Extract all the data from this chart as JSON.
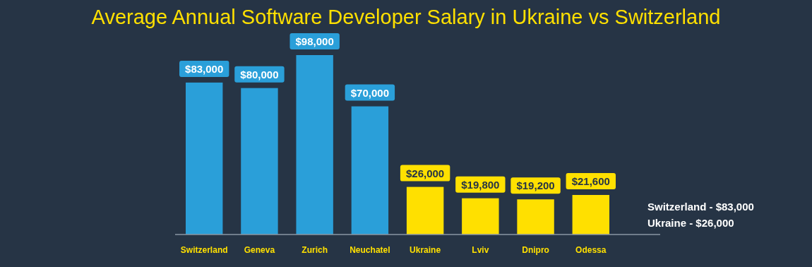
{
  "chart_data": {
    "type": "bar",
    "title": "Average Annual Software Developer Salary in Ukraine vs Switzerland",
    "categories": [
      "Switzerland",
      "Geneva",
      "Zurich",
      "Neuchatel",
      "Ukraine",
      "Lviv",
      "Dnipro",
      "Odessa"
    ],
    "values": [
      83000,
      80000,
      98000,
      70000,
      26000,
      19800,
      19200,
      21600
    ],
    "colors": [
      "#2a9fd9",
      "#2a9fd9",
      "#2a9fd9",
      "#2a9fd9",
      "#ffe000",
      "#ffe000",
      "#ffe000",
      "#ffe000"
    ],
    "value_labels": [
      "$83,000",
      "$80,000",
      "$98,000",
      "$70,000",
      "$26,000",
      "$19,800",
      "$19,200",
      "$21,600"
    ],
    "annotations": [
      "Switzerland - $83,000",
      "Ukraine - $26,000"
    ]
  }
}
